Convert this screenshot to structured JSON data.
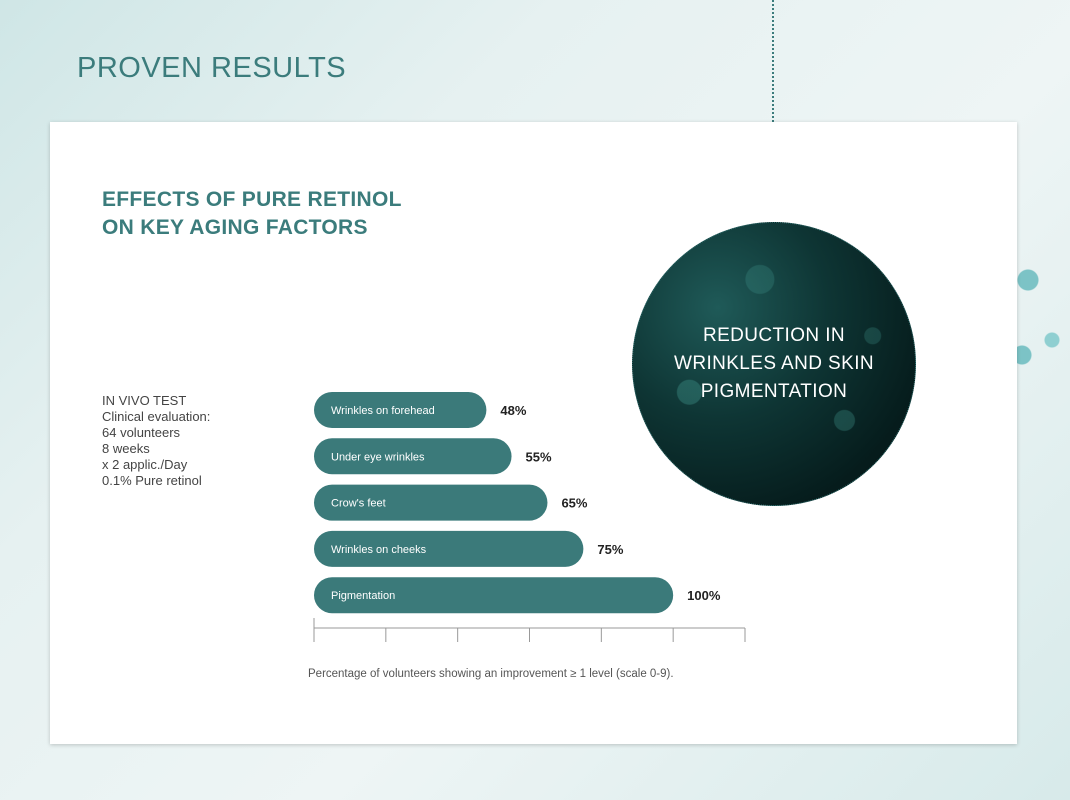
{
  "page_title": "PROVEN RESULTS",
  "heading": [
    "EFFECTS OF PURE RETINOL",
    "ON KEY AGING FACTORS"
  ],
  "test_info": [
    "IN VIVO TEST",
    "Clinical evaluation:",
    "64 volunteers",
    "8 weeks",
    "x 2 applic./Day",
    "0.1% Pure retinol"
  ],
  "circle_text": [
    "REDUCTION IN",
    "WRINKLES AND SKIN",
    "PIGMENTATION"
  ],
  "colors": {
    "accent": "#3b7c7c",
    "bar": "#3b7a7a",
    "axis": "#999999"
  },
  "chart_data": {
    "type": "bar",
    "orientation": "horizontal",
    "categories": [
      "Wrinkles on forehead",
      "Under eye wrinkles",
      "Crow's feet",
      "Wrinkles on cheeks",
      "Pigmentation"
    ],
    "values": [
      48,
      55,
      65,
      75,
      100
    ],
    "data_labels": [
      "48%",
      "55%",
      "65%",
      "75%",
      "100%"
    ],
    "xlim": [
      0,
      120
    ],
    "xticks": [
      0,
      20,
      40,
      60,
      80,
      100,
      120
    ],
    "tick_labels_shown": false,
    "grid": false,
    "caption": "Percentage of volunteers showing an improvement ≥ 1 level (scale 0-9)."
  }
}
